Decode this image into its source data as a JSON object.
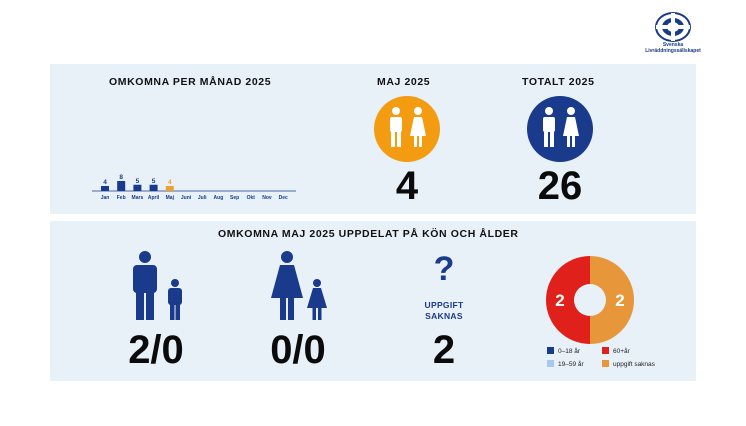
{
  "logo": {
    "name": "Svenska Livräddningssällskapet",
    "letters": "SLS"
  },
  "per_month": {
    "title": "OMKOMNA PER MÅNAD 2025"
  },
  "chart_data": {
    "type": "bar",
    "categories": [
      "Jan",
      "Feb",
      "Mars",
      "April",
      "Maj",
      "Juni",
      "Juli",
      "Aug",
      "Sep",
      "Okt",
      "Nov",
      "Dec"
    ],
    "values": [
      4,
      8,
      5,
      5,
      4,
      null,
      null,
      null,
      null,
      null,
      null,
      null
    ],
    "highlight": "Maj",
    "colors": {
      "default": "#1a3a8c",
      "highlight": "#f0a030"
    },
    "grid": false
  },
  "may": {
    "title": "MAJ 2025",
    "value": "4",
    "color": "#f39c12"
  },
  "total": {
    "title": "TOTALT 2025",
    "value": "26",
    "color": "#1a3a8c"
  },
  "breakdown": {
    "title": "OMKOMNA MAJ 2025 UPPDELAT PÅ KÖN OCH ÅLDER",
    "men": {
      "value": "2/0",
      "icon": "man-and-boy-icon"
    },
    "women": {
      "value": "0/0",
      "icon": "woman-and-girl-icon"
    },
    "unknown": {
      "symbol": "?",
      "label_line1": "UPPGIFT",
      "label_line2": "SAKNAS",
      "value": "2"
    }
  },
  "donut": {
    "segments": [
      {
        "label": "60+år",
        "value": 2,
        "color": "#e0201b"
      },
      {
        "label": "uppgift saknas",
        "value": 2,
        "color": "#e8963a"
      }
    ],
    "value_labels": [
      "2",
      "2"
    ]
  },
  "legend": [
    {
      "label": "0–18 år",
      "color": "#1a3a8c"
    },
    {
      "label": "60+år",
      "color": "#e0201b"
    },
    {
      "label": "19–59 år",
      "color": "#a8c8ec"
    },
    {
      "label": "uppgift saknas",
      "color": "#e8963a"
    }
  ]
}
